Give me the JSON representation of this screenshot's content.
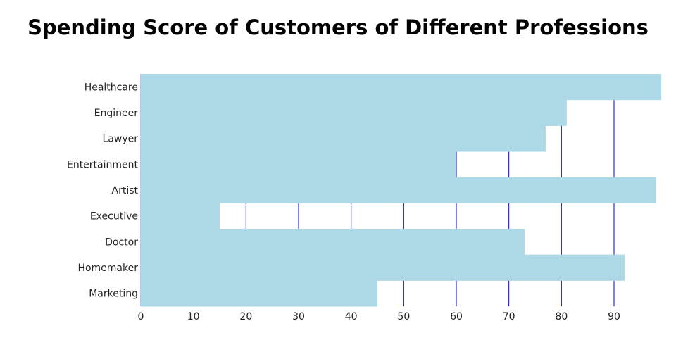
{
  "chart_data": {
    "type": "bar",
    "orientation": "horizontal",
    "title": "Spending Score of Customers of Different Professions",
    "xlabel": "",
    "ylabel": "",
    "categories": [
      "Healthcare",
      "Engineer",
      "Lawyer",
      "Entertainment",
      "Artist",
      "Executive",
      "Doctor",
      "Homemaker",
      "Marketing"
    ],
    "values": [
      99,
      81,
      77,
      60,
      98,
      15,
      73,
      92,
      45
    ],
    "xlim": [
      0,
      99
    ],
    "xticks": [
      0,
      10,
      20,
      30,
      40,
      50,
      60,
      70,
      80,
      90
    ],
    "grid": true,
    "colors": {
      "bar": "#add8e6",
      "grid": "#0000ff"
    }
  }
}
